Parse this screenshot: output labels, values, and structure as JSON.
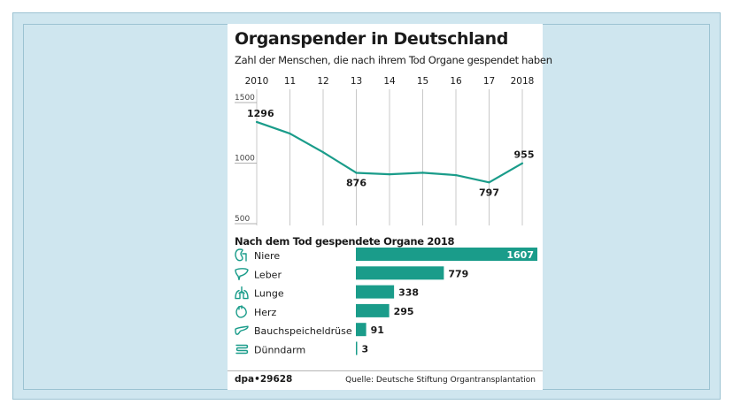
{
  "title": "Organspender in Deutschland",
  "subtitle": "Zahl der Menschen, die nach ihrem Tod Organe gespendet haben",
  "colors": {
    "accent": "#1a9c8a",
    "background": "#cfe6ef",
    "grid": "#c8c8c8"
  },
  "chart_data": [
    {
      "type": "line",
      "title": "Zahl der Menschen, die nach ihrem Tod Organe gespendet haben",
      "x_tick_labels": [
        "2010",
        "11",
        "12",
        "13",
        "14",
        "15",
        "16",
        "17",
        "2018"
      ],
      "x": [
        2010,
        2011,
        2012,
        2013,
        2014,
        2015,
        2016,
        2017,
        2018
      ],
      "values": [
        1296,
        1200,
        1046,
        876,
        864,
        877,
        857,
        797,
        955
      ],
      "data_labels": [
        {
          "index": 0,
          "text": "1296"
        },
        {
          "index": 3,
          "text": "876"
        },
        {
          "index": 7,
          "text": "797"
        },
        {
          "index": 8,
          "text": "955"
        }
      ],
      "y_ticks": [
        1500,
        1000,
        500
      ],
      "ylim": [
        500,
        1500
      ],
      "grid": "vertical"
    },
    {
      "type": "bar",
      "title": "Nach dem Tod gespendete Organe 2018",
      "categories": [
        "Niere",
        "Leber",
        "Lunge",
        "Herz",
        "Bauchspeicheldrüse",
        "Dünndarm"
      ],
      "icons": [
        "kidney-icon",
        "liver-icon",
        "lungs-icon",
        "heart-icon",
        "pancreas-icon",
        "intestine-icon"
      ],
      "values": [
        1607,
        779,
        338,
        295,
        91,
        3
      ],
      "value_labels": [
        "1607",
        "779",
        "338",
        "295",
        "91",
        "3"
      ]
    }
  ],
  "footer": {
    "source_id": "dpa•29628",
    "credit": "Quelle: Deutsche Stiftung Organtransplantation"
  }
}
